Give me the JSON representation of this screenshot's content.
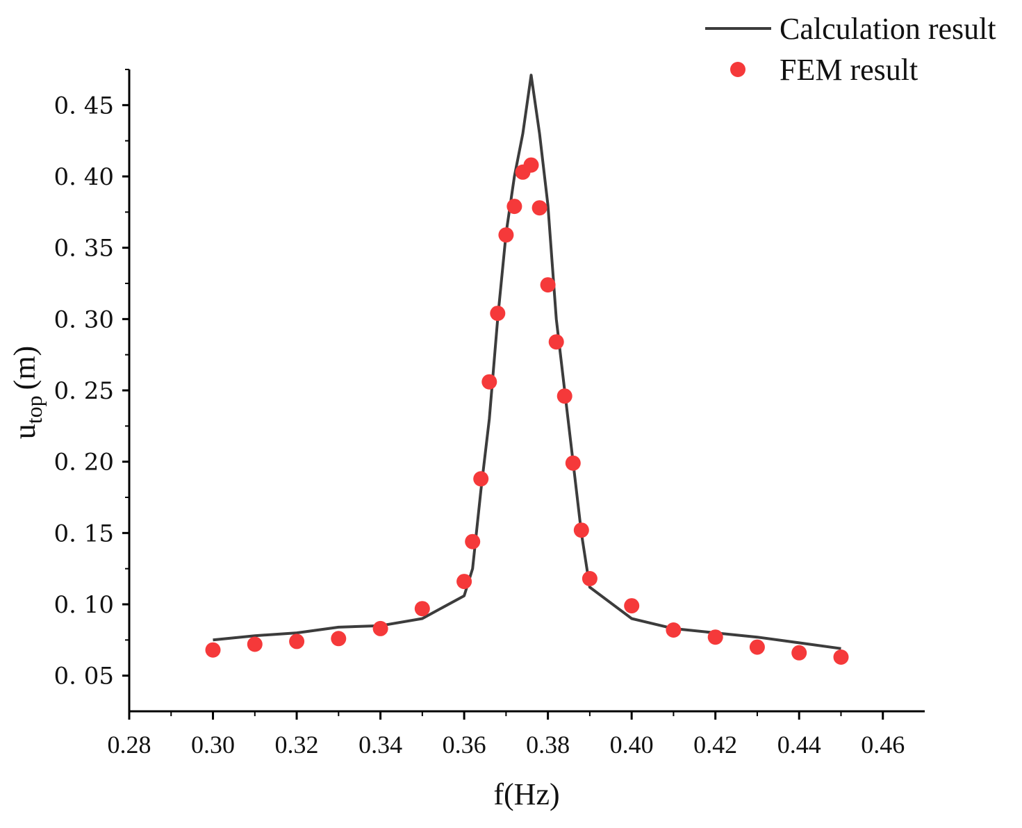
{
  "chart_data": {
    "type": "line+scatter",
    "title": "",
    "xlabel": "f(Hz)",
    "ylabel": {
      "main": "u",
      "subscript": "top",
      "unit": "(m)"
    },
    "xlim": [
      0.28,
      0.47
    ],
    "ylim": [
      0.025,
      0.475
    ],
    "xticks": [
      0.28,
      0.3,
      0.32,
      0.34,
      0.36,
      0.38,
      0.4,
      0.42,
      0.44,
      0.46
    ],
    "xtick_labels": [
      "0.28",
      "0.30",
      "0.32",
      "0.34",
      "0.36",
      "0.38",
      "0.40",
      "0.42",
      "0.44",
      "0.46"
    ],
    "yticks": [
      0.05,
      0.1,
      0.15,
      0.2,
      0.25,
      0.3,
      0.35,
      0.4,
      0.45
    ],
    "ytick_labels": [
      "0. 05",
      "0. 10",
      "0. 15",
      "0. 20",
      "0. 25",
      "0. 30",
      "0. 35",
      "0. 40",
      "0. 45"
    ],
    "legend_position": "top-right",
    "series": [
      {
        "name": "Calculation result",
        "kind": "line",
        "color": "#3c3c3c",
        "x": [
          0.3,
          0.31,
          0.32,
          0.33,
          0.34,
          0.35,
          0.36,
          0.362,
          0.364,
          0.366,
          0.368,
          0.37,
          0.372,
          0.374,
          0.376,
          0.378,
          0.38,
          0.382,
          0.384,
          0.386,
          0.388,
          0.39,
          0.4,
          0.41,
          0.42,
          0.43,
          0.44,
          0.45
        ],
        "y": [
          0.075,
          0.078,
          0.08,
          0.084,
          0.085,
          0.09,
          0.106,
          0.125,
          0.18,
          0.23,
          0.3,
          0.36,
          0.4,
          0.43,
          0.471,
          0.43,
          0.38,
          0.3,
          0.25,
          0.2,
          0.15,
          0.112,
          0.09,
          0.083,
          0.08,
          0.077,
          0.073,
          0.069
        ]
      },
      {
        "name": "FEM result",
        "kind": "scatter",
        "color": "#f5393a",
        "x": [
          0.3,
          0.31,
          0.32,
          0.33,
          0.34,
          0.35,
          0.36,
          0.362,
          0.364,
          0.366,
          0.368,
          0.37,
          0.372,
          0.374,
          0.376,
          0.378,
          0.38,
          0.382,
          0.384,
          0.386,
          0.388,
          0.39,
          0.4,
          0.41,
          0.42,
          0.43,
          0.44,
          0.45
        ],
        "y": [
          0.068,
          0.072,
          0.074,
          0.076,
          0.083,
          0.097,
          0.116,
          0.144,
          0.188,
          0.256,
          0.304,
          0.359,
          0.379,
          0.403,
          0.408,
          0.378,
          0.324,
          0.284,
          0.246,
          0.199,
          0.152,
          0.118,
          0.099,
          0.082,
          0.077,
          0.07,
          0.066,
          0.063
        ]
      }
    ]
  }
}
